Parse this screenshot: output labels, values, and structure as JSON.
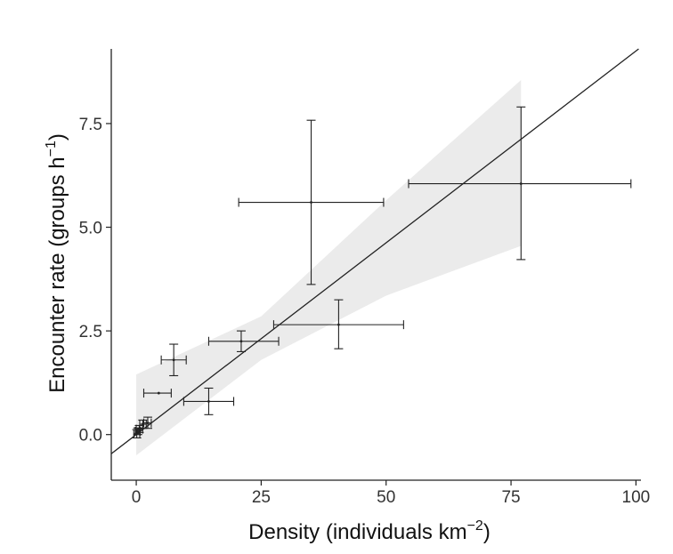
{
  "chart_data": {
    "type": "scatter",
    "xlabel": "Density (individuals km",
    "xlabel_sup": "−2",
    "xlabel_end": ")",
    "ylabel": "Encounter rate (groups h",
    "ylabel_sup": "−1",
    "ylabel_end": ")",
    "xlim": [
      -5,
      101
    ],
    "ylim": [
      -1.1,
      9.3
    ],
    "x_ticks": [
      0,
      25,
      50,
      75,
      100
    ],
    "x_tick_labels": [
      "0",
      "25",
      "50",
      "75",
      "100"
    ],
    "y_ticks": [
      0,
      2.5,
      5,
      7.5
    ],
    "y_tick_labels": [
      "0.0",
      "2.5",
      "5.0",
      "7.5"
    ],
    "grid": false,
    "points": [
      {
        "x": 0.1,
        "y": 0.02,
        "xmin": -0.5,
        "xmax": 0.7,
        "ymin": -0.08,
        "ymax": 0.12
      },
      {
        "x": 0.3,
        "y": 0.08,
        "xmin": -0.2,
        "xmax": 0.8,
        "ymin": 0.0,
        "ymax": 0.16
      },
      {
        "x": 0.6,
        "y": 0.13,
        "xmin": 0.0,
        "xmax": 1.3,
        "ymin": 0.05,
        "ymax": 0.22
      },
      {
        "x": 1.3,
        "y": 0.25,
        "xmin": 0.7,
        "xmax": 2.0,
        "ymin": 0.15,
        "ymax": 0.35
      },
      {
        "x": 2.3,
        "y": 0.28,
        "xmin": 1.5,
        "xmax": 3.0,
        "ymin": 0.15,
        "ymax": 0.42
      },
      {
        "x": 4.5,
        "y": 1.0,
        "xmin": 1.5,
        "xmax": 7.0,
        "ymin": 1.0,
        "ymax": 1.0
      },
      {
        "x": 7.5,
        "y": 1.8,
        "xmin": 5.0,
        "xmax": 10.0,
        "ymin": 1.42,
        "ymax": 2.18
      },
      {
        "x": 14.5,
        "y": 0.8,
        "xmin": 9.5,
        "xmax": 19.5,
        "ymin": 0.48,
        "ymax": 1.12
      },
      {
        "x": 21,
        "y": 2.25,
        "xmin": 14.5,
        "xmax": 28.5,
        "ymin": 2.0,
        "ymax": 2.5
      },
      {
        "x": 35,
        "y": 5.6,
        "xmin": 20.5,
        "xmax": 49.5,
        "ymin": 3.62,
        "ymax": 7.58
      },
      {
        "x": 40.5,
        "y": 2.65,
        "xmin": 27.5,
        "xmax": 53.5,
        "ymin": 2.07,
        "ymax": 3.25
      },
      {
        "x": 77,
        "y": 6.05,
        "xmin": 54.5,
        "xmax": 99,
        "ymin": 4.22,
        "ymax": 7.9
      }
    ],
    "fit_line": {
      "intercept": 0.0,
      "slope": 0.0925
    },
    "confidence_band": {
      "x": [
        0,
        25,
        50,
        77
      ],
      "lower": [
        -0.5,
        1.8,
        3.35,
        4.55
      ],
      "upper": [
        1.45,
        2.85,
        5.65,
        8.55
      ]
    },
    "colors": {
      "points": "#222222",
      "line": "#222222",
      "band": "#ebebeb"
    }
  }
}
